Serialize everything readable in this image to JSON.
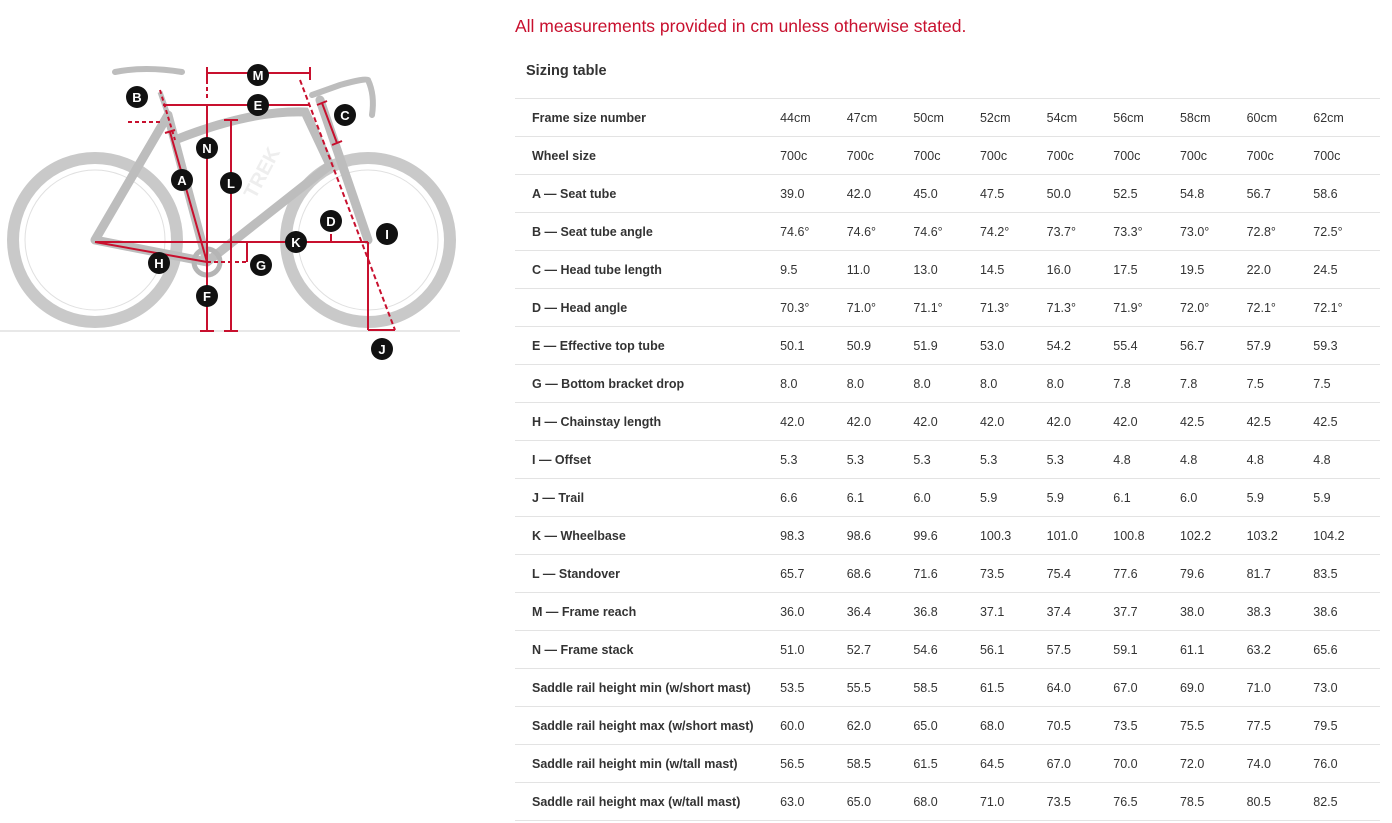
{
  "notice": "All measurements provided in cm unless otherwise stated.",
  "table_title": "Sizing table",
  "accent_color": "#c8102e",
  "diagram": {
    "brand_on_frame": "TREK",
    "labels": [
      "A",
      "B",
      "C",
      "D",
      "E",
      "F",
      "G",
      "H",
      "I",
      "J",
      "K",
      "L",
      "M",
      "N"
    ]
  },
  "table": {
    "rows": [
      {
        "label": "Frame size number",
        "values": [
          "44cm",
          "47cm",
          "50cm",
          "52cm",
          "54cm",
          "56cm",
          "58cm",
          "60cm",
          "62cm"
        ]
      },
      {
        "label": "Wheel size",
        "values": [
          "700c",
          "700c",
          "700c",
          "700c",
          "700c",
          "700c",
          "700c",
          "700c",
          "700c"
        ]
      },
      {
        "label": "A — Seat tube",
        "values": [
          "39.0",
          "42.0",
          "45.0",
          "47.5",
          "50.0",
          "52.5",
          "54.8",
          "56.7",
          "58.6"
        ]
      },
      {
        "label": "B — Seat tube angle",
        "values": [
          "74.6°",
          "74.6°",
          "74.6°",
          "74.2°",
          "73.7°",
          "73.3°",
          "73.0°",
          "72.8°",
          "72.5°"
        ]
      },
      {
        "label": "C — Head tube length",
        "values": [
          "9.5",
          "11.0",
          "13.0",
          "14.5",
          "16.0",
          "17.5",
          "19.5",
          "22.0",
          "24.5"
        ]
      },
      {
        "label": "D — Head angle",
        "values": [
          "70.3°",
          "71.0°",
          "71.1°",
          "71.3°",
          "71.3°",
          "71.9°",
          "72.0°",
          "72.1°",
          "72.1°"
        ]
      },
      {
        "label": "E — Effective top tube",
        "values": [
          "50.1",
          "50.9",
          "51.9",
          "53.0",
          "54.2",
          "55.4",
          "56.7",
          "57.9",
          "59.3"
        ]
      },
      {
        "label": "G — Bottom bracket drop",
        "values": [
          "8.0",
          "8.0",
          "8.0",
          "8.0",
          "8.0",
          "7.8",
          "7.8",
          "7.5",
          "7.5"
        ]
      },
      {
        "label": "H — Chainstay length",
        "values": [
          "42.0",
          "42.0",
          "42.0",
          "42.0",
          "42.0",
          "42.0",
          "42.5",
          "42.5",
          "42.5"
        ]
      },
      {
        "label": "I — Offset",
        "values": [
          "5.3",
          "5.3",
          "5.3",
          "5.3",
          "5.3",
          "4.8",
          "4.8",
          "4.8",
          "4.8"
        ]
      },
      {
        "label": "J — Trail",
        "values": [
          "6.6",
          "6.1",
          "6.0",
          "5.9",
          "5.9",
          "6.1",
          "6.0",
          "5.9",
          "5.9"
        ]
      },
      {
        "label": "K — Wheelbase",
        "values": [
          "98.3",
          "98.6",
          "99.6",
          "100.3",
          "101.0",
          "100.8",
          "102.2",
          "103.2",
          "104.2"
        ]
      },
      {
        "label": "L — Standover",
        "values": [
          "65.7",
          "68.6",
          "71.6",
          "73.5",
          "75.4",
          "77.6",
          "79.6",
          "81.7",
          "83.5"
        ]
      },
      {
        "label": "M — Frame reach",
        "values": [
          "36.0",
          "36.4",
          "36.8",
          "37.1",
          "37.4",
          "37.7",
          "38.0",
          "38.3",
          "38.6"
        ]
      },
      {
        "label": "N — Frame stack",
        "values": [
          "51.0",
          "52.7",
          "54.6",
          "56.1",
          "57.5",
          "59.1",
          "61.1",
          "63.2",
          "65.6"
        ]
      },
      {
        "label": "Saddle rail height min (w/short mast)",
        "values": [
          "53.5",
          "55.5",
          "58.5",
          "61.5",
          "64.0",
          "67.0",
          "69.0",
          "71.0",
          "73.0"
        ]
      },
      {
        "label": "Saddle rail height max (w/short mast)",
        "values": [
          "60.0",
          "62.0",
          "65.0",
          "68.0",
          "70.5",
          "73.5",
          "75.5",
          "77.5",
          "79.5"
        ]
      },
      {
        "label": "Saddle rail height min (w/tall mast)",
        "values": [
          "56.5",
          "58.5",
          "61.5",
          "64.5",
          "67.0",
          "70.0",
          "72.0",
          "74.0",
          "76.0"
        ]
      },
      {
        "label": "Saddle rail height max (w/tall mast)",
        "values": [
          "63.0",
          "65.0",
          "68.0",
          "71.0",
          "73.5",
          "76.5",
          "78.5",
          "80.5",
          "82.5"
        ]
      }
    ]
  }
}
